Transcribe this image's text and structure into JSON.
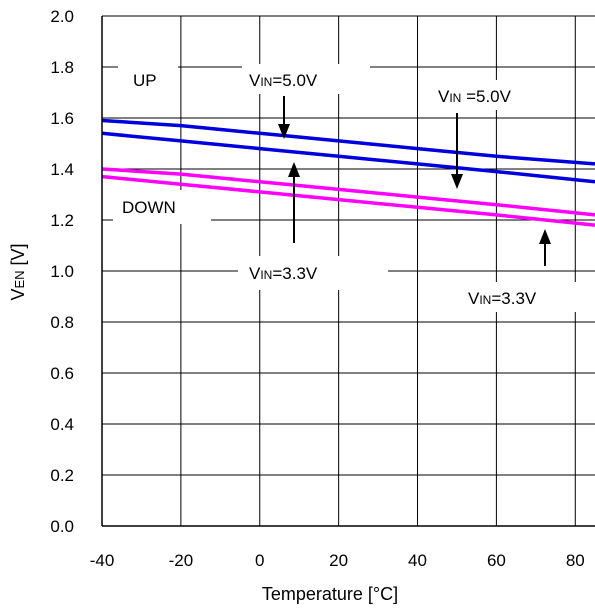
{
  "chart_data": {
    "type": "line",
    "xlabel": "Temperature [°C]",
    "ylabel": "VEN [V]",
    "ylabel_main": "V",
    "ylabel_sub": "EN",
    "ylabel_unit": " [V]",
    "xlim": [
      -40,
      85
    ],
    "ylim": [
      0.0,
      2.0
    ],
    "xticks": [
      -40,
      -20,
      0,
      20,
      40,
      60,
      80
    ],
    "xtick_labels": [
      "-40",
      "-20",
      "0",
      "20",
      "40",
      "60",
      "80"
    ],
    "yticks": [
      0.0,
      0.2,
      0.4,
      0.6,
      0.8,
      1.0,
      1.2,
      1.4,
      1.6,
      1.8,
      2.0
    ],
    "ytick_labels": [
      "0.0",
      "0.2",
      "0.4",
      "0.6",
      "0.8",
      "1.0",
      "1.2",
      "1.4",
      "1.6",
      "1.8",
      "2.0"
    ],
    "grid": true,
    "x": [
      -40,
      -20,
      0,
      20,
      40,
      60,
      85
    ],
    "series": [
      {
        "color": "#0000dd",
        "values": [
          1.59,
          1.57,
          1.54,
          1.51,
          1.48,
          1.45,
          1.42
        ]
      },
      {
        "color": "#0000dd",
        "values": [
          1.54,
          1.51,
          1.48,
          1.45,
          1.42,
          1.39,
          1.35
        ]
      },
      {
        "color": "#ff00ff",
        "values": [
          1.4,
          1.38,
          1.35,
          1.32,
          1.29,
          1.26,
          1.22
        ]
      },
      {
        "color": "#ff00ff",
        "values": [
          1.37,
          1.34,
          1.31,
          1.28,
          1.25,
          1.22,
          1.18
        ]
      }
    ],
    "annotations": {
      "up": "UP",
      "down": "DOWN",
      "vin50_left": {
        "main": "V",
        "sub": "IN",
        "rest": "=5.0V"
      },
      "vin50_right": {
        "main": "V",
        "sub": "IN",
        "rest": " =5.0V"
      },
      "vin33_left": {
        "main": "V",
        "sub": "IN",
        "rest": "=3.3V"
      },
      "vin33_right": {
        "main": "V",
        "sub": "IN",
        "rest": "=3.3V"
      }
    }
  }
}
